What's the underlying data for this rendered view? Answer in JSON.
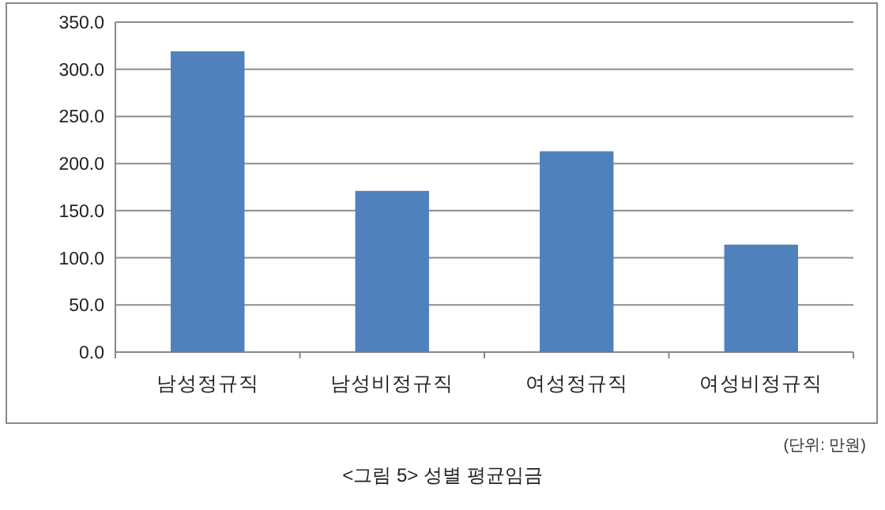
{
  "chart_data": {
    "type": "bar",
    "categories": [
      "남성정규직",
      "남성비정규직",
      "여성정규직",
      "여성비정규직"
    ],
    "values": [
      319,
      171,
      213,
      114
    ],
    "color": "#4f81bd",
    "ylim": [
      0,
      350
    ],
    "yticks": [
      {
        "value": 0,
        "label": "0.0"
      },
      {
        "value": 50,
        "label": "50.0"
      },
      {
        "value": 100,
        "label": "100.0"
      },
      {
        "value": 150,
        "label": "150.0"
      },
      {
        "value": 200,
        "label": "200.0"
      },
      {
        "value": 250,
        "label": "250.0"
      },
      {
        "value": 300,
        "label": "300.0"
      },
      {
        "value": 350,
        "label": "350.0"
      }
    ],
    "grid": "y",
    "annotations": [
      "(단위: 만원)",
      "<그림 5> 성별 평균임금"
    ]
  }
}
